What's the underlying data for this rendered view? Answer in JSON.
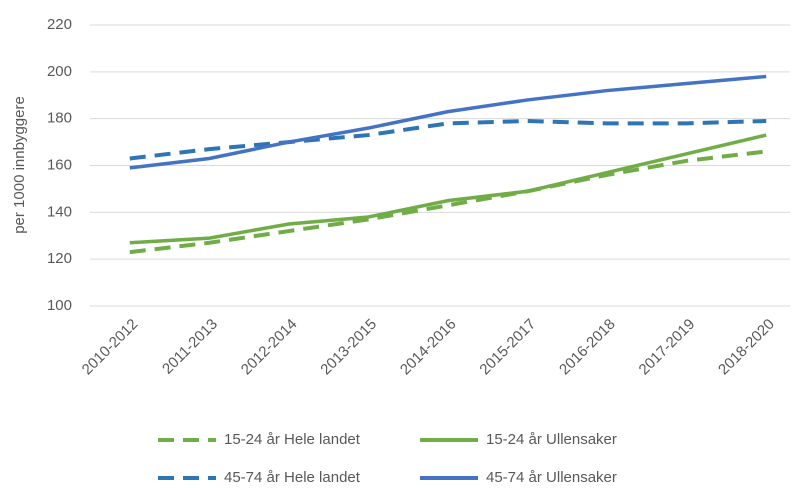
{
  "chart_data": {
    "type": "line",
    "y_label": "per 1000 innbyggere",
    "categories": [
      "2010-2012",
      "2011-2013",
      "2012-2014",
      "2013-2015",
      "2014-2016",
      "2015-2017",
      "2016-2018",
      "2017-2019",
      "2018-2020"
    ],
    "series": [
      {
        "name": "15-24 år Hele landet",
        "color": "#70ad47",
        "dashed": true,
        "values": [
          123,
          127,
          132,
          137,
          143,
          149,
          156,
          162,
          166
        ]
      },
      {
        "name": "15-24 år Ullensaker",
        "color": "#70ad47",
        "dashed": false,
        "values": [
          127,
          129,
          135,
          138,
          145,
          149,
          157,
          165,
          173
        ]
      },
      {
        "name": "45-74 år Hele landet",
        "color": "#2e75b6",
        "dashed": true,
        "values": [
          163,
          167,
          170,
          173,
          178,
          179,
          178,
          178,
          179
        ]
      },
      {
        "name": "45-74 år Ullensaker",
        "color": "#4472c4",
        "dashed": false,
        "values": [
          159,
          163,
          170,
          176,
          183,
          188,
          192,
          195,
          198
        ]
      }
    ],
    "ylim": [
      100,
      220
    ],
    "yticks": [
      100,
      120,
      140,
      160,
      180,
      200,
      220
    ],
    "grid": true,
    "legend": "bottom"
  }
}
